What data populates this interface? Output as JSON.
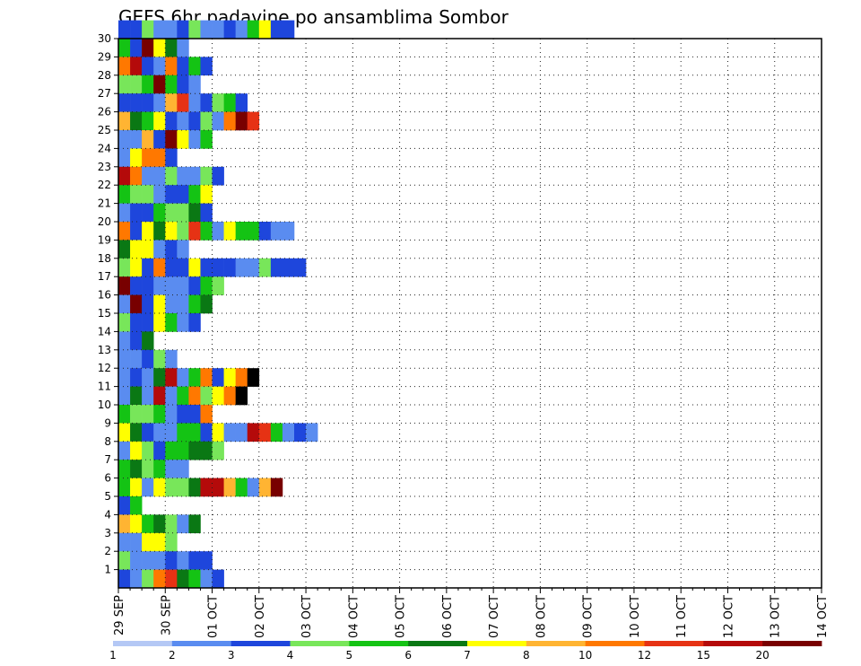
{
  "chart_data": {
    "type": "heatmap",
    "title": "GEFS 6hr padavine po ansamblima Sombor",
    "xlabel": "",
    "ylabel": "",
    "x_tick_labels": [
      "29 SEP",
      "30 SEP",
      "01 OCT",
      "02 OCT",
      "03 OCT",
      "04 OCT",
      "05 OCT",
      "06 OCT",
      "07 OCT",
      "08 OCT",
      "09 OCT",
      "10 OCT",
      "11 OCT",
      "12 OCT",
      "13 OCT",
      "14 OCT"
    ],
    "y_tick_labels": [
      "1",
      "2",
      "3",
      "4",
      "5",
      "6",
      "7",
      "8",
      "9",
      "10",
      "11",
      "12",
      "13",
      "14",
      "15",
      "16",
      "17",
      "18",
      "19",
      "20",
      "21",
      "22",
      "23",
      "24",
      "25",
      "26",
      "27",
      "28",
      "29",
      "30"
    ],
    "x_range": [
      "29 SEP 00Z",
      "14 OCT 00Z"
    ],
    "y_range": [
      0,
      30
    ],
    "time_step_hours": 6,
    "grid": true,
    "colorbar": {
      "placement": "bottom",
      "tick_labels": [
        "1",
        "2",
        "3",
        "4",
        "5",
        "6",
        "7",
        "8",
        "10",
        "12",
        "15",
        "20"
      ],
      "colors": [
        "#b4c8f5",
        "#5a8cf0",
        "#1e46dc",
        "#78e65a",
        "#14c314",
        "#0a7814",
        "#ffff00",
        "#ffb432",
        "#ff7800",
        "#e63214",
        "#b40a0a",
        "#780000"
      ]
    },
    "cells": [
      [
        30,
        0,
        1,
        2
      ],
      [
        30,
        1,
        2,
        2
      ],
      [
        30,
        2,
        3,
        3
      ],
      [
        30,
        3,
        4,
        1
      ],
      [
        30,
        4,
        5,
        1
      ],
      [
        30,
        5,
        6,
        2
      ],
      [
        30,
        6,
        7,
        3
      ],
      [
        30,
        7,
        8,
        1
      ],
      [
        30,
        8,
        9,
        1
      ],
      [
        30,
        9,
        10,
        2
      ],
      [
        30,
        10,
        11,
        1
      ],
      [
        30,
        11,
        12,
        4
      ],
      [
        30,
        12,
        13,
        6
      ],
      [
        30,
        13,
        14,
        2
      ],
      [
        30,
        14,
        15,
        2
      ],
      [
        29,
        0,
        1,
        4
      ],
      [
        29,
        1,
        2,
        2
      ],
      [
        29,
        2,
        3,
        11
      ],
      [
        29,
        3,
        4,
        6
      ],
      [
        29,
        4,
        5,
        5
      ],
      [
        29,
        5,
        6,
        1
      ],
      [
        28,
        0,
        1,
        8
      ],
      [
        28,
        1,
        2,
        10
      ],
      [
        28,
        2,
        3,
        2
      ],
      [
        28,
        3,
        4,
        1
      ],
      [
        28,
        4,
        5,
        8
      ],
      [
        28,
        5,
        6,
        2
      ],
      [
        28,
        6,
        7,
        4
      ],
      [
        28,
        7,
        8,
        2
      ],
      [
        27,
        0,
        1,
        3
      ],
      [
        27,
        1,
        2,
        3
      ],
      [
        27,
        2,
        3,
        4
      ],
      [
        27,
        3,
        4,
        11
      ],
      [
        27,
        4,
        5,
        4
      ],
      [
        27,
        5,
        6,
        2
      ],
      [
        27,
        6,
        7,
        1
      ],
      [
        26,
        0,
        1,
        2
      ],
      [
        26,
        1,
        2,
        2
      ],
      [
        26,
        2,
        3,
        2
      ],
      [
        26,
        3,
        4,
        1
      ],
      [
        26,
        4,
        5,
        7
      ],
      [
        26,
        5,
        6,
        9
      ],
      [
        26,
        6,
        7,
        1
      ],
      [
        26,
        7,
        8,
        2
      ],
      [
        26,
        8,
        9,
        3
      ],
      [
        26,
        9,
        10,
        4
      ],
      [
        26,
        10,
        11,
        2
      ],
      [
        25,
        0,
        1,
        7
      ],
      [
        25,
        1,
        2,
        5
      ],
      [
        25,
        2,
        3,
        4
      ],
      [
        25,
        3,
        4,
        6
      ],
      [
        25,
        4,
        5,
        2
      ],
      [
        25,
        5,
        6,
        1
      ],
      [
        25,
        6,
        7,
        2
      ],
      [
        25,
        7,
        8,
        3
      ],
      [
        25,
        8,
        9,
        1
      ],
      [
        25,
        9,
        10,
        8
      ],
      [
        25,
        10,
        11,
        11
      ],
      [
        25,
        11,
        12,
        9
      ],
      [
        24,
        0,
        1,
        1
      ],
      [
        24,
        1,
        2,
        1
      ],
      [
        24,
        2,
        3,
        7
      ],
      [
        24,
        3,
        4,
        2
      ],
      [
        24,
        4,
        5,
        11
      ],
      [
        24,
        5,
        6,
        6
      ],
      [
        24,
        6,
        7,
        1
      ],
      [
        24,
        7,
        8,
        4
      ],
      [
        23,
        0,
        1,
        1
      ],
      [
        23,
        1,
        2,
        6
      ],
      [
        23,
        2,
        3,
        8
      ],
      [
        23,
        3,
        4,
        8
      ],
      [
        23,
        4,
        5,
        2
      ],
      [
        22,
        0,
        1,
        10
      ],
      [
        22,
        1,
        2,
        8
      ],
      [
        22,
        2,
        3,
        1
      ],
      [
        22,
        3,
        4,
        1
      ],
      [
        22,
        4,
        5,
        3
      ],
      [
        22,
        5,
        6,
        1
      ],
      [
        22,
        6,
        7,
        1
      ],
      [
        22,
        7,
        8,
        3
      ],
      [
        22,
        8,
        9,
        2
      ],
      [
        21,
        0,
        1,
        4
      ],
      [
        21,
        1,
        2,
        3
      ],
      [
        21,
        2,
        3,
        3
      ],
      [
        21,
        3,
        4,
        1
      ],
      [
        21,
        4,
        5,
        2
      ],
      [
        21,
        5,
        6,
        2
      ],
      [
        21,
        6,
        7,
        4
      ],
      [
        21,
        7,
        8,
        6
      ],
      [
        20,
        0,
        1,
        1
      ],
      [
        20,
        1,
        2,
        2
      ],
      [
        20,
        2,
        3,
        2
      ],
      [
        20,
        3,
        4,
        4
      ],
      [
        20,
        4,
        5,
        3
      ],
      [
        20,
        5,
        6,
        3
      ],
      [
        20,
        6,
        7,
        5
      ],
      [
        20,
        7,
        8,
        2
      ],
      [
        19,
        0,
        1,
        8
      ],
      [
        19,
        1,
        2,
        2
      ],
      [
        19,
        2,
        3,
        6
      ],
      [
        19,
        3,
        4,
        5
      ],
      [
        19,
        4,
        5,
        6
      ],
      [
        19,
        5,
        6,
        3
      ],
      [
        19,
        6,
        7,
        9
      ],
      [
        19,
        7,
        8,
        4
      ],
      [
        19,
        8,
        9,
        1
      ],
      [
        19,
        9,
        10,
        6
      ],
      [
        19,
        10,
        11,
        4
      ],
      [
        19,
        11,
        12,
        4
      ],
      [
        19,
        12,
        13,
        2
      ],
      [
        19,
        13,
        14,
        1
      ],
      [
        19,
        14,
        15,
        1
      ],
      [
        18,
        0,
        1,
        5
      ],
      [
        18,
        1,
        2,
        6
      ],
      [
        18,
        2,
        3,
        6
      ],
      [
        18,
        3,
        4,
        1
      ],
      [
        18,
        4,
        5,
        2
      ],
      [
        18,
        5,
        6,
        1
      ],
      [
        17,
        0,
        1,
        3
      ],
      [
        17,
        1,
        2,
        6
      ],
      [
        17,
        2,
        3,
        2
      ],
      [
        17,
        3,
        4,
        8
      ],
      [
        17,
        4,
        5,
        2
      ],
      [
        17,
        5,
        6,
        2
      ],
      [
        17,
        6,
        7,
        6
      ],
      [
        17,
        7,
        8,
        2
      ],
      [
        17,
        8,
        9,
        2
      ],
      [
        17,
        9,
        10,
        2
      ],
      [
        17,
        10,
        11,
        1
      ],
      [
        17,
        11,
        12,
        1
      ],
      [
        17,
        12,
        13,
        3
      ],
      [
        17,
        13,
        14,
        2
      ],
      [
        17,
        14,
        15,
        2
      ],
      [
        17,
        15,
        16,
        2
      ],
      [
        16,
        0,
        1,
        11
      ],
      [
        16,
        1,
        2,
        2
      ],
      [
        16,
        2,
        3,
        2
      ],
      [
        16,
        3,
        4,
        1
      ],
      [
        16,
        4,
        5,
        1
      ],
      [
        16,
        5,
        6,
        1
      ],
      [
        16,
        6,
        7,
        2
      ],
      [
        16,
        7,
        8,
        4
      ],
      [
        16,
        8,
        9,
        3
      ],
      [
        15,
        0,
        1,
        1
      ],
      [
        15,
        1,
        2,
        11
      ],
      [
        15,
        2,
        3,
        2
      ],
      [
        15,
        3,
        4,
        6
      ],
      [
        15,
        4,
        5,
        1
      ],
      [
        15,
        5,
        6,
        1
      ],
      [
        15,
        6,
        7,
        4
      ],
      [
        15,
        7,
        8,
        5
      ],
      [
        14,
        0,
        1,
        3
      ],
      [
        14,
        1,
        2,
        2
      ],
      [
        14,
        2,
        3,
        2
      ],
      [
        14,
        3,
        4,
        6
      ],
      [
        14,
        4,
        5,
        4
      ],
      [
        14,
        5,
        6,
        1
      ],
      [
        14,
        6,
        7,
        2
      ],
      [
        13,
        0,
        1,
        1
      ],
      [
        13,
        1,
        2,
        2
      ],
      [
        13,
        2,
        3,
        5
      ],
      [
        12,
        0,
        1,
        1
      ],
      [
        12,
        1,
        2,
        1
      ],
      [
        12,
        2,
        3,
        2
      ],
      [
        12,
        3,
        4,
        3
      ],
      [
        12,
        4,
        5,
        1
      ],
      [
        11,
        0,
        1,
        1
      ],
      [
        11,
        1,
        2,
        2
      ],
      [
        11,
        2,
        3,
        1
      ],
      [
        11,
        3,
        4,
        5
      ],
      [
        11,
        4,
        5,
        10
      ],
      [
        11,
        5,
        6,
        1
      ],
      [
        11,
        6,
        7,
        4
      ],
      [
        11,
        7,
        8,
        8
      ],
      [
        11,
        8,
        9,
        2
      ],
      [
        11,
        9,
        10,
        6
      ],
      [
        11,
        10,
        11,
        8
      ],
      [
        11,
        11,
        12,
        12
      ],
      [
        10,
        0,
        1,
        1
      ],
      [
        10,
        1,
        2,
        5
      ],
      [
        10,
        2,
        3,
        1
      ],
      [
        10,
        3,
        4,
        10
      ],
      [
        10,
        4,
        5,
        1
      ],
      [
        10,
        5,
        6,
        4
      ],
      [
        10,
        6,
        7,
        8
      ],
      [
        10,
        7,
        8,
        3
      ],
      [
        10,
        8,
        9,
        6
      ],
      [
        10,
        9,
        10,
        8
      ],
      [
        10,
        10,
        11,
        12
      ],
      [
        9,
        0,
        1,
        4
      ],
      [
        9,
        1,
        2,
        3
      ],
      [
        9,
        2,
        3,
        3
      ],
      [
        9,
        3,
        4,
        4
      ],
      [
        9,
        4,
        5,
        1
      ],
      [
        9,
        5,
        6,
        2
      ],
      [
        9,
        6,
        7,
        2
      ],
      [
        9,
        7,
        8,
        8
      ],
      [
        8,
        0,
        1,
        6
      ],
      [
        8,
        1,
        2,
        5
      ],
      [
        8,
        2,
        3,
        2
      ],
      [
        8,
        3,
        4,
        1
      ],
      [
        8,
        4,
        5,
        1
      ],
      [
        8,
        5,
        6,
        4
      ],
      [
        8,
        6,
        7,
        4
      ],
      [
        8,
        7,
        8,
        2
      ],
      [
        8,
        8,
        9,
        6
      ],
      [
        8,
        9,
        10,
        1
      ],
      [
        8,
        10,
        11,
        1
      ],
      [
        8,
        11,
        12,
        10
      ],
      [
        8,
        12,
        13,
        9
      ],
      [
        8,
        13,
        14,
        4
      ],
      [
        8,
        14,
        15,
        1
      ],
      [
        8,
        15,
        16,
        2
      ],
      [
        8,
        16,
        17,
        1
      ],
      [
        7,
        0,
        1,
        1
      ],
      [
        7,
        1,
        2,
        6
      ],
      [
        7,
        2,
        3,
        3
      ],
      [
        7,
        3,
        4,
        2
      ],
      [
        7,
        4,
        5,
        4
      ],
      [
        7,
        5,
        6,
        4
      ],
      [
        7,
        6,
        7,
        5
      ],
      [
        7,
        7,
        8,
        5
      ],
      [
        7,
        8,
        9,
        3
      ],
      [
        6,
        0,
        1,
        4
      ],
      [
        6,
        1,
        2,
        5
      ],
      [
        6,
        2,
        3,
        3
      ],
      [
        6,
        3,
        4,
        4
      ],
      [
        6,
        4,
        5,
        1
      ],
      [
        6,
        5,
        6,
        1
      ],
      [
        5,
        0,
        1,
        4
      ],
      [
        5,
        1,
        2,
        6
      ],
      [
        5,
        2,
        3,
        1
      ],
      [
        5,
        3,
        4,
        6
      ],
      [
        5,
        4,
        5,
        3
      ],
      [
        5,
        5,
        6,
        3
      ],
      [
        5,
        6,
        7,
        5
      ],
      [
        5,
        7,
        8,
        10
      ],
      [
        5,
        8,
        9,
        10
      ],
      [
        5,
        9,
        10,
        7
      ],
      [
        5,
        10,
        11,
        4
      ],
      [
        5,
        11,
        12,
        1
      ],
      [
        5,
        12,
        13,
        7
      ],
      [
        5,
        13,
        14,
        11
      ],
      [
        4,
        0,
        1,
        2
      ],
      [
        4,
        1,
        2,
        4
      ],
      [
        3,
        0,
        1,
        7
      ],
      [
        3,
        1,
        2,
        6
      ],
      [
        3,
        2,
        3,
        4
      ],
      [
        3,
        3,
        4,
        5
      ],
      [
        3,
        4,
        5,
        3
      ],
      [
        3,
        5,
        6,
        1
      ],
      [
        3,
        6,
        7,
        5
      ],
      [
        2,
        0,
        1,
        1
      ],
      [
        2,
        1,
        2,
        1
      ],
      [
        2,
        2,
        3,
        6
      ],
      [
        2,
        3,
        4,
        6
      ],
      [
        2,
        4,
        5,
        3
      ],
      [
        1,
        0,
        1,
        3
      ],
      [
        1,
        1,
        2,
        1
      ],
      [
        1,
        2,
        3,
        1
      ],
      [
        1,
        3,
        4,
        1
      ],
      [
        1,
        4,
        5,
        2
      ],
      [
        1,
        5,
        6,
        1
      ],
      [
        1,
        6,
        7,
        2
      ],
      [
        1,
        7,
        8,
        2
      ],
      [
        0,
        0,
        1,
        2
      ],
      [
        0,
        1,
        2,
        1
      ],
      [
        0,
        2,
        3,
        3
      ],
      [
        0,
        3,
        4,
        8
      ],
      [
        0,
        4,
        5,
        9
      ],
      [
        0,
        5,
        6,
        5
      ],
      [
        0,
        6,
        7,
        4
      ],
      [
        0,
        7,
        8,
        1
      ],
      [
        0,
        8,
        9,
        2
      ]
    ]
  }
}
